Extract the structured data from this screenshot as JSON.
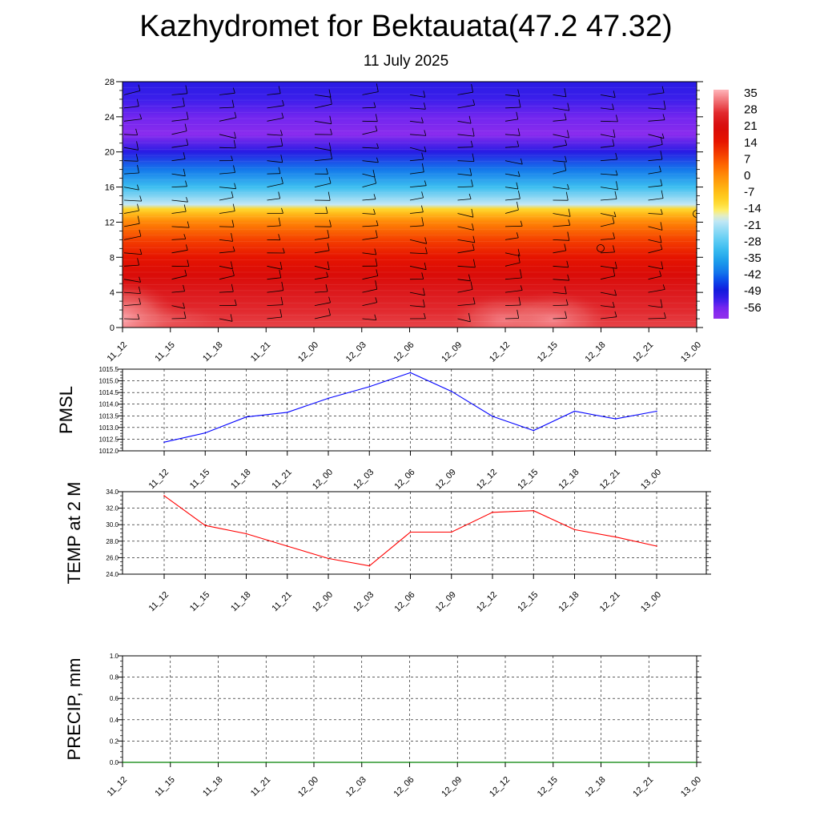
{
  "header": {
    "title": "Kazhydromet for Bektauata(47.2 47.32)",
    "subtitle": "11 July 2025"
  },
  "colors": {
    "pmsl_line": "#0000ff",
    "temp_line": "#ff0000",
    "precip_line": "#008000",
    "wind_barbs": "#000000",
    "grid": "#000000"
  },
  "chart_data": [
    {
      "id": "upper_air",
      "type": "heatmap",
      "x_tick_labels": [
        "11_12",
        "11_15",
        "11_18",
        "11_21",
        "12_00",
        "12_03",
        "12_06",
        "12_09",
        "12_12",
        "12_15",
        "12_18",
        "12_21",
        "13_00"
      ],
      "y_tick_labels": [
        "0",
        "4",
        "8",
        "12",
        "16",
        "20",
        "24",
        "28"
      ],
      "ylim": [
        0,
        28
      ],
      "colorbar": {
        "labels": [
          "35",
          "28",
          "21",
          "14",
          "7",
          "0",
          "-7",
          "-14",
          "-21",
          "-28",
          "-35",
          "-42",
          "-49",
          "-56"
        ],
        "range": [
          -60,
          38
        ]
      },
      "overlay": "wind barbs",
      "temperature_by_level": [
        {
          "level": 0,
          "value": 30
        },
        {
          "level": 2,
          "value": 28
        },
        {
          "level": 4,
          "value": 25
        },
        {
          "level": 6,
          "value": 21
        },
        {
          "level": 8,
          "value": 16
        },
        {
          "level": 10,
          "value": 10
        },
        {
          "level": 12,
          "value": 2
        },
        {
          "level": 13.5,
          "value": -10
        },
        {
          "level": 14,
          "value": -18
        },
        {
          "level": 16,
          "value": -30
        },
        {
          "level": 18,
          "value": -40
        },
        {
          "level": 20,
          "value": -50
        },
        {
          "level": 22,
          "value": -58
        },
        {
          "level": 24,
          "value": -55
        },
        {
          "level": 26,
          "value": -52
        },
        {
          "level": 28,
          "value": -50
        }
      ],
      "surface_temperature": [
        33,
        30,
        29,
        27,
        26,
        25,
        29,
        29,
        31.5,
        31.7,
        29.4,
        28.5,
        27.4
      ]
    },
    {
      "id": "pmsl",
      "type": "line",
      "ylabel": "PMSL",
      "x": [
        "11_12",
        "11_15",
        "11_18",
        "11_21",
        "12_00",
        "12_03",
        "12_06",
        "12_09",
        "12_12",
        "12_15",
        "12_18",
        "12_21",
        "13_00"
      ],
      "y_tick_labels": [
        "1012.0",
        "1012.5",
        "1013.0",
        "1013.5",
        "1014.0",
        "1014.5",
        "1015.0",
        "1015.5"
      ],
      "ylim": [
        1012.0,
        1015.5
      ],
      "series": [
        {
          "values": [
            1012.37,
            1012.77,
            1013.45,
            1013.65,
            1014.25,
            1014.75,
            1015.35,
            1014.55,
            1013.48,
            1012.87,
            1013.7,
            1013.37,
            1013.7
          ]
        }
      ]
    },
    {
      "id": "temp2m",
      "type": "line",
      "ylabel": "TEMP at 2 M",
      "x": [
        "11_12",
        "11_15",
        "11_18",
        "11_21",
        "12_00",
        "12_03",
        "12_06",
        "12_09",
        "12_12",
        "12_15",
        "12_18",
        "12_21",
        "13_00"
      ],
      "y_tick_labels": [
        "24.0",
        "26.0",
        "28.0",
        "30.0",
        "32.0",
        "34.0"
      ],
      "ylim": [
        24.0,
        34.0
      ],
      "series": [
        {
          "values": [
            33.5,
            29.9,
            28.9,
            27.4,
            25.9,
            25.0,
            29.1,
            29.1,
            31.5,
            31.7,
            29.4,
            28.5,
            27.4
          ]
        }
      ]
    },
    {
      "id": "precip",
      "type": "line",
      "ylabel": "PRECIP, mm",
      "x": [
        "11_12",
        "11_15",
        "11_18",
        "11_21",
        "12_00",
        "12_03",
        "12_06",
        "12_09",
        "12_12",
        "12_15",
        "12_18",
        "12_21",
        "13_00"
      ],
      "y_tick_labels": [
        "0.0",
        "0.2",
        "0.4",
        "0.6",
        "0.8",
        "1.0"
      ],
      "ylim": [
        0,
        1.0
      ],
      "series": [
        {
          "values": [
            0,
            0,
            0,
            0,
            0,
            0,
            0,
            0,
            0,
            0,
            0,
            0,
            0
          ]
        }
      ]
    }
  ]
}
